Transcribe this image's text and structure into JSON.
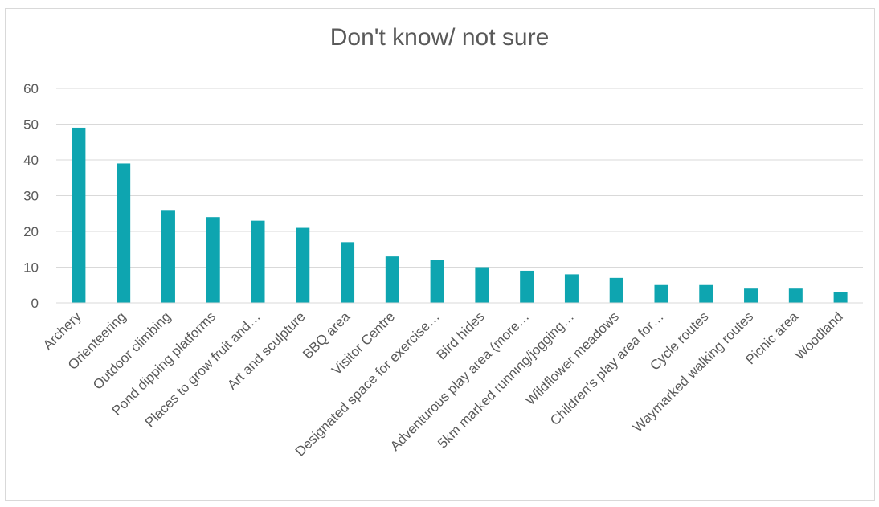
{
  "chart_data": {
    "type": "bar",
    "title": "Don't know/ not sure",
    "xlabel": "",
    "ylabel": "",
    "ylim": [
      0,
      60
    ],
    "yticks": [
      "0",
      "10",
      "20",
      "30",
      "40",
      "50",
      "60"
    ],
    "grid": true,
    "legend": "none",
    "bar_color": "#0ea5b0",
    "categories": [
      "Archery",
      "Orienteering",
      "Outdoor climbing",
      "Pond dipping platforms",
      "Places to grow fruit and…",
      "Art and sculpture",
      "BBQ area",
      "Visitor Centre",
      "Designated space for exercise…",
      "Bird hides",
      "Adventurous play area (more…",
      "5km marked running/jogging…",
      "Wildflower meadows",
      "Children’s play area for…",
      "Cycle routes",
      "Waymarked walking routes",
      "Picnic area",
      "Woodland"
    ],
    "values": [
      49,
      39,
      26,
      24,
      23,
      21,
      17,
      13,
      12,
      10,
      9,
      8,
      7,
      5,
      5,
      4,
      4,
      3
    ]
  }
}
